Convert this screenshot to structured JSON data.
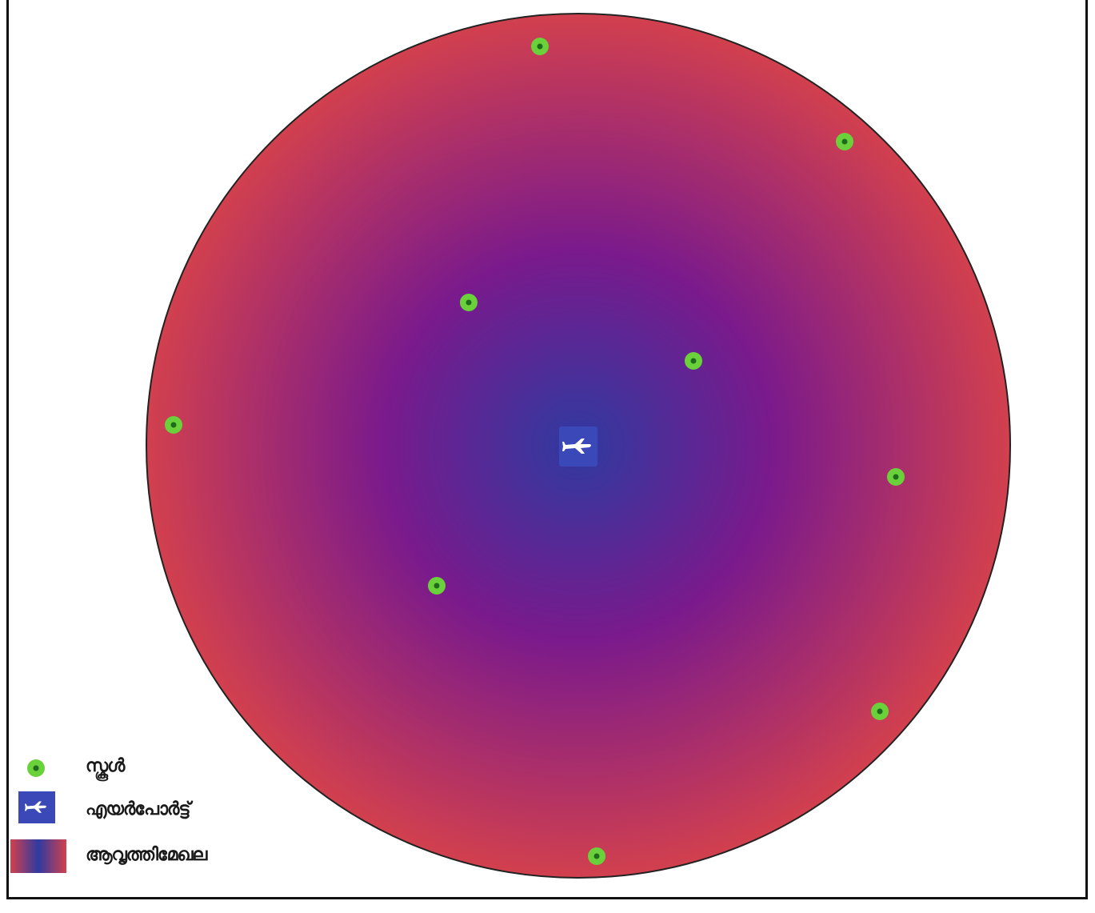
{
  "map": {
    "zone": {
      "inner_color": "#2f3aa0",
      "mid_color": "#7a1a8c",
      "outer_color": "#d2404e",
      "edge_color": "#222222"
    },
    "school_icon": "school-dot-icon",
    "school_color": "#6ad13a",
    "school_center_color": "#1e6b1e",
    "airport_icon": "airplane-icon",
    "airport_color": "#3a48b8",
    "school_count": 9
  },
  "legend": {
    "school_label": "സ്കൂൾ",
    "airport_label": "എയർപോർട്ട്",
    "zone_label": "ആവൃത്തിമേഖല"
  }
}
